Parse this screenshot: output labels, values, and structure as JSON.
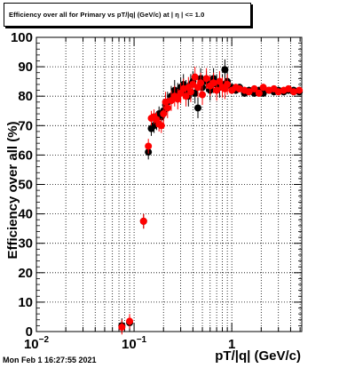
{
  "header": {
    "title": "Efficiency over all for Primary vs pT/|q| (GeV/c) at | η | <= 1.0"
  },
  "footer": {
    "timestamp": "Mon Feb  1 16:27:55 2021"
  },
  "colors": {
    "series_black": "#000000",
    "series_red": "#ff0000",
    "grid": "#000000",
    "background": "#ffffff"
  },
  "chart_data": {
    "type": "scatter",
    "title": "Efficiency over all for Primary vs pT/|q| (GeV/c) at | η | <= 1.0",
    "xlabel": "pT/|q| (GeV/c)",
    "ylabel": "Efficiency over all (%)",
    "xscale": "log",
    "xlim": [
      0.01,
      5.2
    ],
    "ylim": [
      0,
      100
    ],
    "grid": true,
    "legend": "none",
    "y_ticks": [
      "0",
      "10",
      "20",
      "30",
      "40",
      "50",
      "60",
      "70",
      "80",
      "90",
      "100"
    ],
    "x_tick_labels": [
      {
        "value": 0.01,
        "base": "10",
        "exp": "−2"
      },
      {
        "value": 0.1,
        "base": "10",
        "exp": "−1"
      },
      {
        "value": 1,
        "base": "1",
        "exp": ""
      }
    ],
    "series": [
      {
        "color": "#000000",
        "points": [
          [
            0.075,
            2.0
          ],
          [
            0.09,
            3.0
          ],
          [
            0.125,
            37.5
          ],
          [
            0.14,
            61.0
          ],
          [
            0.15,
            69.0
          ],
          [
            0.16,
            70.0
          ],
          [
            0.17,
            71.0
          ],
          [
            0.18,
            74.0
          ],
          [
            0.19,
            73.0
          ],
          [
            0.2,
            75.0
          ],
          [
            0.21,
            77.0
          ],
          [
            0.22,
            78.0
          ],
          [
            0.24,
            80.0
          ],
          [
            0.26,
            82.0
          ],
          [
            0.28,
            81.0
          ],
          [
            0.3,
            83.0
          ],
          [
            0.32,
            84.0
          ],
          [
            0.34,
            82.0
          ],
          [
            0.36,
            80.0
          ],
          [
            0.38,
            84.0
          ],
          [
            0.4,
            85.0
          ],
          [
            0.42,
            81.0
          ],
          [
            0.45,
            76.0
          ],
          [
            0.48,
            86.0
          ],
          [
            0.5,
            83.0
          ],
          [
            0.55,
            85.0
          ],
          [
            0.6,
            82.0
          ],
          [
            0.65,
            86.0
          ],
          [
            0.7,
            84.0
          ],
          [
            0.75,
            83.0
          ],
          [
            0.8,
            84.0
          ],
          [
            0.85,
            89.0
          ],
          [
            0.9,
            85.0
          ],
          [
            1.0,
            83.0
          ],
          [
            1.1,
            82.0
          ],
          [
            1.2,
            83.0
          ],
          [
            1.35,
            81.0
          ],
          [
            1.5,
            82.0
          ],
          [
            1.7,
            81.0
          ],
          [
            1.9,
            82.0
          ],
          [
            2.1,
            81.0
          ],
          [
            2.4,
            82.0
          ],
          [
            2.7,
            81.5
          ],
          [
            3.0,
            82.0
          ],
          [
            3.4,
            81.5
          ],
          [
            3.8,
            82.0
          ],
          [
            4.3,
            82.0
          ],
          [
            4.9,
            81.5
          ]
        ]
      },
      {
        "color": "#ff0000",
        "points": [
          [
            0.075,
            1.5
          ],
          [
            0.09,
            3.5
          ],
          [
            0.125,
            37.5
          ],
          [
            0.14,
            63.0
          ],
          [
            0.15,
            72.5
          ],
          [
            0.16,
            73.0
          ],
          [
            0.17,
            72.0
          ],
          [
            0.18,
            70.5
          ],
          [
            0.19,
            70.0
          ],
          [
            0.2,
            74.0
          ],
          [
            0.21,
            78.0
          ],
          [
            0.22,
            76.0
          ],
          [
            0.24,
            78.5
          ],
          [
            0.26,
            80.0
          ],
          [
            0.28,
            79.0
          ],
          [
            0.3,
            81.0
          ],
          [
            0.32,
            82.5
          ],
          [
            0.34,
            80.0
          ],
          [
            0.36,
            83.0
          ],
          [
            0.38,
            81.5
          ],
          [
            0.4,
            84.0
          ],
          [
            0.42,
            86.5
          ],
          [
            0.45,
            83.0
          ],
          [
            0.48,
            84.5
          ],
          [
            0.5,
            80.5
          ],
          [
            0.55,
            86.0
          ],
          [
            0.6,
            83.5
          ],
          [
            0.65,
            84.5
          ],
          [
            0.7,
            82.0
          ],
          [
            0.75,
            85.0
          ],
          [
            0.8,
            83.0
          ],
          [
            0.85,
            82.5
          ],
          [
            0.9,
            84.0
          ],
          [
            1.0,
            82.0
          ],
          [
            1.1,
            83.0
          ],
          [
            1.2,
            82.5
          ],
          [
            1.35,
            82.0
          ],
          [
            1.5,
            81.5
          ],
          [
            1.7,
            82.5
          ],
          [
            1.9,
            81.0
          ],
          [
            2.1,
            83.0
          ],
          [
            2.4,
            82.0
          ],
          [
            2.7,
            82.5
          ],
          [
            3.0,
            81.5
          ],
          [
            3.4,
            82.0
          ],
          [
            3.8,
            82.5
          ],
          [
            4.3,
            81.5
          ],
          [
            4.9,
            82.0
          ]
        ]
      }
    ]
  }
}
